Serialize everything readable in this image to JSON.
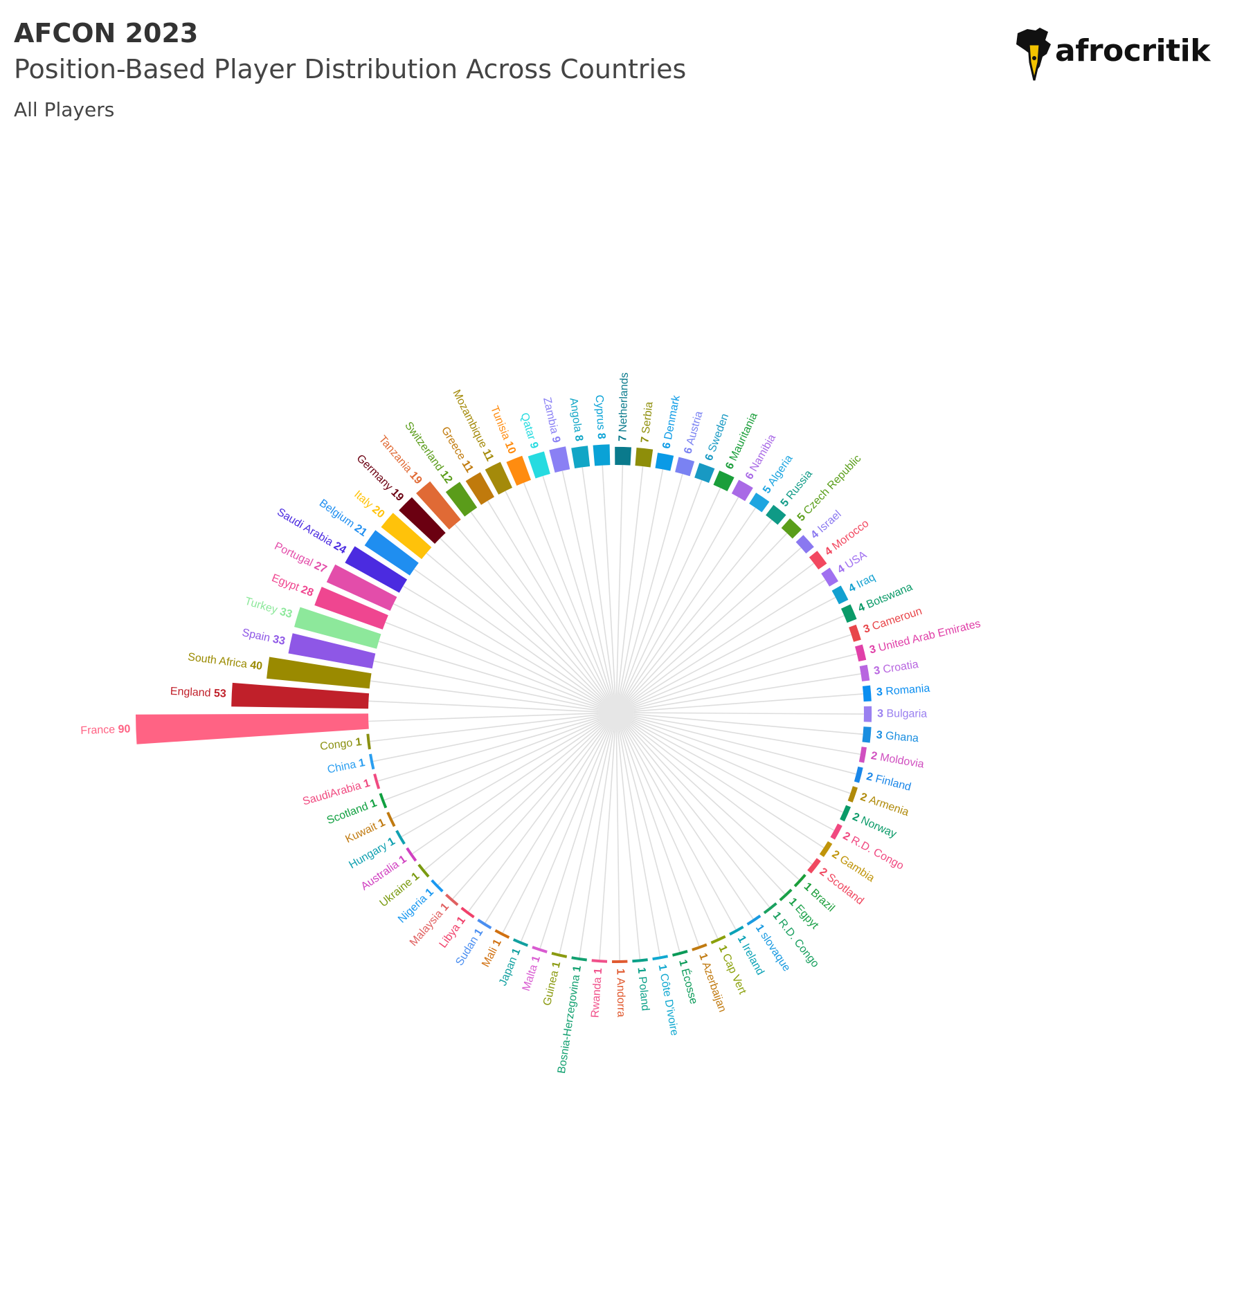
{
  "header": {
    "title": "AFCON 2023",
    "subtitle": "Position-Based Player Distribution Across Countries",
    "caption": "All Players"
  },
  "logo": {
    "text": "afrocritik",
    "icon": "africa-pen-icon"
  },
  "colors": {
    "grid": "#dddddd",
    "logo_accent": "#f2c200"
  },
  "chart_data": {
    "type": "bar",
    "layout": "radial",
    "title": "",
    "categories": [
      "France",
      "England",
      "South Africa",
      "Spain",
      "Turkey",
      "Egypt",
      "Portugal",
      "Saudi Arabia",
      "Belgium",
      "Italy",
      "Germany",
      "Tanzania",
      "Switzerland",
      "Greece",
      "Mozambique",
      "Tunisia",
      "Qatar",
      "Zambia",
      "Angola",
      "Cyprus",
      "Netherlands",
      "Serbia",
      "Denmark",
      "Austria",
      "Sweden",
      "Mauritania",
      "Namibia",
      "Algeria",
      "Russia",
      "Czech Republic",
      "Israel",
      "Morocco",
      "USA",
      "Iraq",
      "Botswana",
      "Cameroun",
      "United Arab Emirates",
      "Croatia",
      "Romania",
      "Bulgaria",
      "Ghana",
      "Moldovia",
      "Finland",
      "Armenia",
      "Norway",
      "R.D. Congo",
      "Gambia",
      "Scotland",
      "Brazil",
      "Egpyt",
      "R.D. Congo",
      "slovaque",
      "Ireland",
      "Cap Vert",
      "Azerbaijan",
      "Écosse",
      "Côte D'ivoire",
      "Poland",
      "Andorra",
      "Rwanda",
      "Bosnia-Herzegovina",
      "Guinea",
      "Malta",
      "Japan",
      "Mali",
      "Sudan",
      "Libya",
      "Malaysia",
      "Nigeria",
      "Ukraine",
      "Australia",
      "Hungary",
      "Kuwait",
      "Scotland",
      "SaudiArabia",
      "China",
      "Congo"
    ],
    "values": [
      90,
      53,
      40,
      33,
      33,
      28,
      27,
      24,
      21,
      20,
      19,
      19,
      12,
      11,
      11,
      10,
      9,
      9,
      8,
      8,
      7,
      7,
      6,
      6,
      6,
      6,
      6,
      5,
      5,
      5,
      4,
      4,
      4,
      4,
      4,
      3,
      3,
      3,
      3,
      3,
      3,
      2,
      2,
      2,
      2,
      2,
      2,
      2,
      1,
      1,
      1,
      1,
      1,
      1,
      1,
      1,
      1,
      1,
      1,
      1,
      1,
      1,
      1,
      1,
      1,
      1,
      1,
      1,
      1,
      1,
      1,
      1,
      1,
      1,
      1,
      1,
      1
    ],
    "colors": [
      "#ff6384",
      "#c0202a",
      "#9a8a00",
      "#8e57e6",
      "#8de89b",
      "#ef4690",
      "#e34daa",
      "#4b2be0",
      "#1f8ef0",
      "#ffc20a",
      "#6b0011",
      "#e06a35",
      "#5a9c1a",
      "#c07a0c",
      "#a48a0a",
      "#ff8c10",
      "#26dbe0",
      "#8a80f4",
      "#12a6c6",
      "#0aa2d6",
      "#0a7a8c",
      "#8e8e0a",
      "#0a9ae6",
      "#7a82f2",
      "#1899c3",
      "#1a9e3a",
      "#a96ae6",
      "#1ea5e0",
      "#0f9a86",
      "#5a9e1a",
      "#8a78f0",
      "#f24860",
      "#a070f0",
      "#12a0d0",
      "#0a9a68",
      "#e8464a",
      "#e040a8",
      "#b866e0",
      "#0a8ef0",
      "#9a80f0",
      "#1a8ee0",
      "#d050c0",
      "#1a86e8",
      "#b08a0a",
      "#0a9a68",
      "#f04880",
      "#c0940a",
      "#f04860",
      "#1a9e3a",
      "#1aa048",
      "#1aa060",
      "#1a9ae0",
      "#0aa2b6",
      "#8aa00a",
      "#c07a10",
      "#0a9a58",
      "#10a8d0",
      "#0aa088",
      "#e05a30",
      "#f0508a",
      "#12a070",
      "#8a9a10",
      "#d85ad0",
      "#12a0a0",
      "#d07010",
      "#4a8ef0",
      "#f0406a",
      "#e06060",
      "#1a98f0",
      "#7a9a10",
      "#d040c0",
      "#10a0b0",
      "#c07a10",
      "#10a040",
      "#f04a80",
      "#2a9ef0",
      "#8a9010"
    ],
    "ylim": [
      0,
      90
    ]
  }
}
